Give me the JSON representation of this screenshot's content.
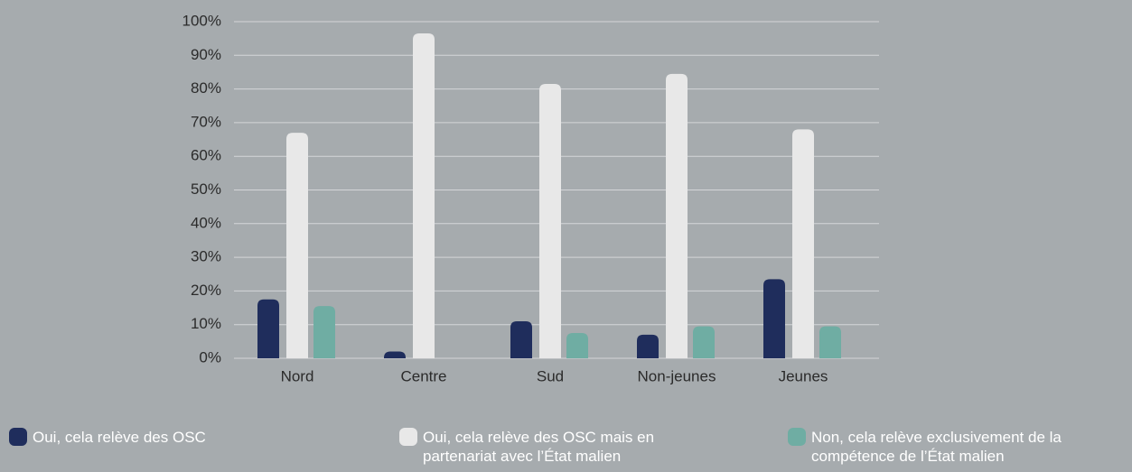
{
  "chart_data": {
    "type": "bar",
    "categories": [
      "Nord",
      "Centre",
      "Sud",
      "Non-jeunes",
      "Jeunes"
    ],
    "series": [
      {
        "name": "Oui, cela relève des OSC",
        "color": "#1f2d5c",
        "values": [
          17.5,
          2,
          11,
          7,
          23.5
        ]
      },
      {
        "name": "Oui, cela relève des OSC mais en partenariat avec l’État malien",
        "color": "#e8e8e8",
        "values": [
          67,
          96.5,
          81.5,
          84.5,
          68
        ]
      },
      {
        "name": "Non, cela relève exclusivement de la compétence de l’État malien",
        "color": "#6fada3",
        "values": [
          15.5,
          0,
          7.5,
          9.5,
          9.5
        ]
      }
    ],
    "ylim": [
      0,
      100
    ],
    "yticks": [
      {
        "value": 0,
        "label": "0%"
      },
      {
        "value": 10,
        "label": "10%"
      },
      {
        "value": 20,
        "label": "20%"
      },
      {
        "value": 30,
        "label": "30%"
      },
      {
        "value": 40,
        "label": "40%"
      },
      {
        "value": 50,
        "label": "50%"
      },
      {
        "value": 60,
        "label": "60%"
      },
      {
        "value": 70,
        "label": "70%"
      },
      {
        "value": 80,
        "label": "80%"
      },
      {
        "value": 90,
        "label": "90%"
      },
      {
        "value": 100,
        "label": "100%"
      }
    ],
    "grid": true,
    "legend": "bottom"
  }
}
